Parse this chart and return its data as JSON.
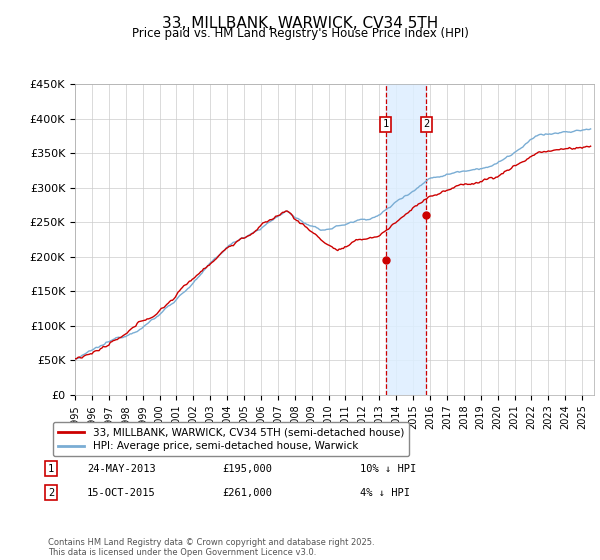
{
  "title": "33, MILLBANK, WARWICK, CV34 5TH",
  "subtitle": "Price paid vs. HM Land Registry's House Price Index (HPI)",
  "ylim": [
    0,
    450000
  ],
  "yticks": [
    0,
    50000,
    100000,
    150000,
    200000,
    250000,
    300000,
    350000,
    400000,
    450000
  ],
  "ytick_labels": [
    "£0",
    "£50K",
    "£100K",
    "£150K",
    "£200K",
    "£250K",
    "£300K",
    "£350K",
    "£400K",
    "£450K"
  ],
  "line1_color": "#cc0000",
  "line2_color": "#7aadd4",
  "marker1_year": 2013.38,
  "marker1_value": 195000,
  "marker2_year": 2015.79,
  "marker2_value": 261000,
  "legend_label1": "33, MILLBANK, WARWICK, CV34 5TH (semi-detached house)",
  "legend_label2": "HPI: Average price, semi-detached house, Warwick",
  "annotation1_date": "24-MAY-2013",
  "annotation1_price": "£195,000",
  "annotation1_hpi": "10% ↓ HPI",
  "annotation2_date": "15-OCT-2015",
  "annotation2_price": "£261,000",
  "annotation2_hpi": "4% ↓ HPI",
  "footer": "Contains HM Land Registry data © Crown copyright and database right 2025.\nThis data is licensed under the Open Government Licence v3.0.",
  "background_color": "#ffffff",
  "grid_color": "#cccccc",
  "shade_color": "#ddeeff"
}
